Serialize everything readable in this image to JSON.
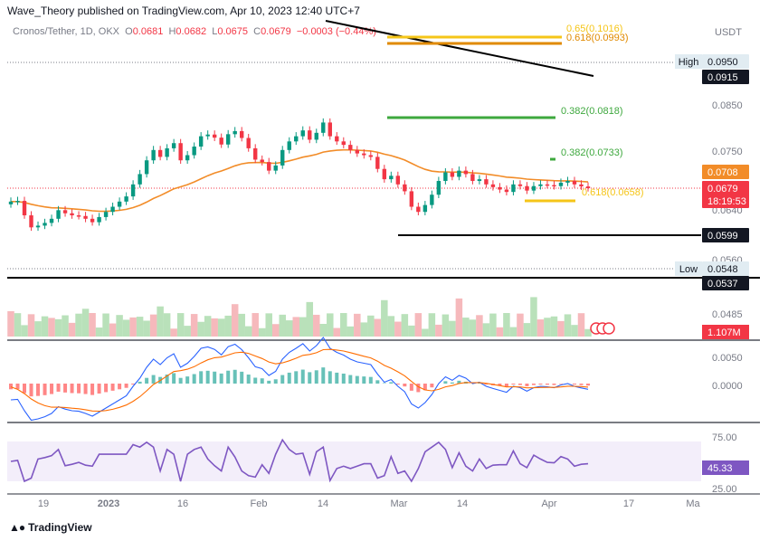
{
  "header": {
    "publisher": "Wave_Theory published on TradingView.com, Apr 10, 2023 12:40 UTC+7"
  },
  "legend": {
    "symbol": "Cronos/Tether, 1D, OKX",
    "open_label": "O",
    "open": "0.0681",
    "high_label": "H",
    "high": "0.0682",
    "low_label": "L",
    "low": "0.0675",
    "close_label": "C",
    "close": "0.0679",
    "change": "−0.0003 (−0.44%)"
  },
  "axis_currency": "USDT",
  "footer": {
    "brand": "TradingView",
    "logo_icon": "tradingview-logo-icon"
  },
  "chart_data": {
    "type": "candlestick",
    "y_ticks": [
      "0.0850",
      "0.0750",
      "0.0640",
      "0.0560",
      "0.0485"
    ],
    "x_ticks": [
      "19",
      "2023",
      "16",
      "Feb",
      "14",
      "Mar",
      "14",
      "Apr",
      "17",
      "Ma"
    ],
    "price_tags": [
      {
        "label": "High",
        "value": "0.0950",
        "style": "light"
      },
      {
        "label": "",
        "value": "0.0915",
        "style": "dark"
      },
      {
        "label": "",
        "value": "0.0708",
        "style": "orange"
      },
      {
        "label": "",
        "value": "0.0679",
        "countdown": "18:19:53",
        "style": "red"
      },
      {
        "label": "",
        "value": "0.0599",
        "style": "dark"
      },
      {
        "label": "Low",
        "value": "0.0548",
        "style": "light"
      },
      {
        "label": "",
        "value": "0.0537",
        "style": "dark"
      }
    ],
    "fib_labels": [
      {
        "text": "0.65(0.1016)",
        "color": "#f5c518"
      },
      {
        "text": "0.618(0.0993)",
        "color": "#e08a00"
      },
      {
        "text": "0.382(0.0818)",
        "color": "#3ea83e"
      },
      {
        "text": "0.382(0.0733)",
        "color": "#3ea83e"
      },
      {
        "text": "0.618(0.0658)",
        "color": "#f5c518"
      }
    ],
    "volume": {
      "value": "1.107M"
    },
    "macd": {
      "ticks": [
        "0.0050",
        "0.0000"
      ]
    },
    "rsi": {
      "ticks": [
        "75.00",
        "25.00"
      ],
      "value": "45.33"
    },
    "colors": {
      "up": "#089981",
      "down": "#f23645",
      "ema": "#f28c28",
      "macd": "#2962ff",
      "signal": "#ff6d00",
      "rsi": "#7e57c2"
    }
  }
}
